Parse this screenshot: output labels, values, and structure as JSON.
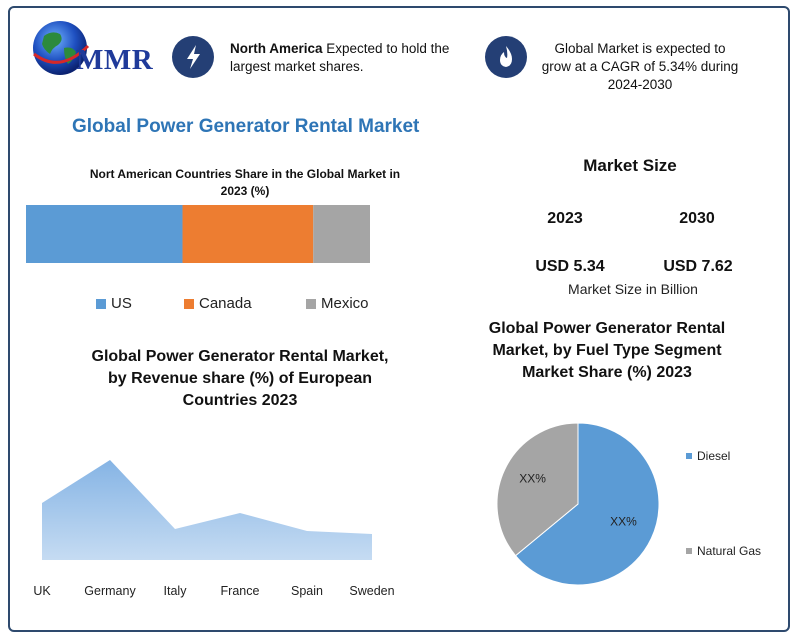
{
  "logo": {
    "text": "MMR"
  },
  "highlights": [
    {
      "icon": "lightning-icon",
      "bold": "North America",
      "text": " Expected to hold the largest market shares."
    },
    {
      "icon": "flame-icon",
      "text": "Global Market is expected to grow at a CAGR of 5.34% during 2024-2030"
    }
  ],
  "main_title": "Global Power Generator Rental Market",
  "colors": {
    "us": "#5b9bd5",
    "canada": "#ed7d31",
    "mexico": "#a5a5a5",
    "area": "#7fb0e3",
    "diesel": "#5b9bd5",
    "natural_gas": "#a5a5a5",
    "title_blue": "#2e75b6",
    "frame": "#2e4a6e"
  },
  "market_size": {
    "title": "Market Size",
    "year_a": "2023",
    "year_b": "2030",
    "value_a": "USD 5.34",
    "value_b": "USD 7.62",
    "unit_label": "Market Size in Billion"
  },
  "chart_data": [
    {
      "type": "bar",
      "orientation": "horizontal-stacked",
      "title": "Nort American Countries Share in the Global Market in 2023  (%)",
      "series": [
        {
          "name": "US",
          "values": [
            45.5
          ]
        },
        {
          "name": "Canada",
          "values": [
            38
          ]
        },
        {
          "name": "Mexico",
          "values": [
            16.5
          ]
        }
      ],
      "legend": "bottom"
    },
    {
      "type": "area",
      "title": "Global Power Generator Rental Market, by Revenue share (%) of European Countries 2023",
      "categories": [
        "UK",
        "Germany",
        "Italy",
        "France",
        "Spain",
        "Sweden"
      ],
      "values": [
        57,
        100,
        31,
        47,
        29,
        26
      ],
      "grid": false
    },
    {
      "type": "pie",
      "title": "Global Power Generator Rental Market, by  Fuel Type  Segment Market Share (%) 2023",
      "labels": [
        "Diesel",
        "Natural Gas"
      ],
      "values": [
        64,
        36
      ],
      "data_labels": [
        "XX%",
        "XX%"
      ],
      "legend": "right"
    }
  ]
}
